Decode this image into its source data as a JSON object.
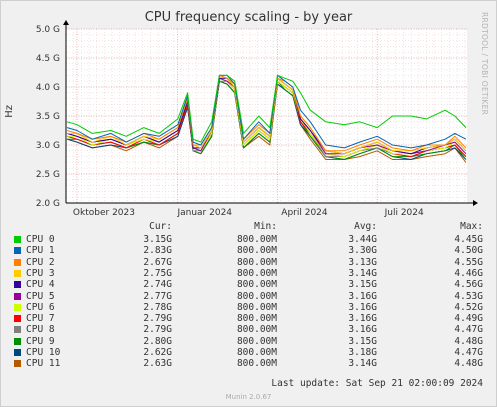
{
  "chart_data": {
    "type": "line",
    "title": "CPU frequency scaling - by year",
    "ylabel": "Hz",
    "ylim": [
      2.0,
      5.0
    ],
    "ytick_labels": [
      "2.0 G",
      "2.5 G",
      "3.0 G",
      "3.5 G",
      "4.0 G",
      "4.5 G",
      "5.0 G"
    ],
    "ytick_values": [
      2.0,
      2.5,
      3.0,
      3.5,
      4.0,
      4.5,
      5.0
    ],
    "x_range": [
      "2023-09-21",
      "2024-09-21"
    ],
    "xtick_labels": [
      "Oktober 2023",
      "Januar 2024",
      "April 2024",
      "Juli 2024"
    ],
    "xtick_dates": [
      "2023-10-01",
      "2024-01-01",
      "2024-04-01",
      "2024-07-01"
    ],
    "grid": true,
    "x_dates": [
      "2023-09-22",
      "2023-10-01",
      "2023-10-15",
      "2023-11-01",
      "2023-11-15",
      "2023-12-01",
      "2023-12-15",
      "2024-01-01",
      "2024-01-10",
      "2024-01-15",
      "2024-01-22",
      "2024-02-01",
      "2024-02-08",
      "2024-02-15",
      "2024-02-22",
      "2024-03-01",
      "2024-03-15",
      "2024-03-25",
      "2024-04-01",
      "2024-04-08",
      "2024-04-15",
      "2024-04-22",
      "2024-05-01",
      "2024-05-15",
      "2024-06-01",
      "2024-06-15",
      "2024-07-01",
      "2024-07-15",
      "2024-08-01",
      "2024-08-15",
      "2024-09-01",
      "2024-09-10",
      "2024-09-20"
    ],
    "series": [
      {
        "name": "CPU 0",
        "color": "#00cc00",
        "values": [
          3.4,
          3.35,
          3.2,
          3.25,
          3.15,
          3.3,
          3.2,
          3.45,
          3.9,
          3.1,
          3.05,
          3.4,
          4.2,
          4.2,
          4.1,
          3.2,
          3.5,
          3.3,
          4.2,
          4.15,
          4.1,
          3.9,
          3.6,
          3.4,
          3.35,
          3.4,
          3.3,
          3.5,
          3.5,
          3.45,
          3.6,
          3.5,
          3.3
        ]
      },
      {
        "name": "CPU 1",
        "color": "#0066b3",
        "values": [
          3.3,
          3.25,
          3.1,
          3.2,
          3.05,
          3.2,
          3.15,
          3.35,
          3.85,
          3.05,
          3.0,
          3.3,
          4.2,
          4.2,
          4.05,
          3.1,
          3.4,
          3.2,
          4.2,
          4.1,
          4.0,
          3.6,
          3.4,
          3.0,
          2.95,
          3.05,
          3.15,
          3.0,
          2.95,
          3.0,
          3.1,
          3.2,
          3.1
        ]
      },
      {
        "name": "CPU 2",
        "color": "#ff8000",
        "values": [
          3.25,
          3.2,
          3.1,
          3.15,
          3.05,
          3.2,
          3.1,
          3.3,
          3.8,
          3.0,
          3.0,
          3.3,
          4.2,
          4.15,
          4.05,
          3.1,
          3.35,
          3.2,
          4.15,
          4.1,
          4.0,
          3.5,
          3.3,
          2.9,
          2.9,
          3.0,
          3.1,
          2.95,
          2.9,
          3.0,
          3.0,
          3.15,
          2.95
        ]
      },
      {
        "name": "CPU 3",
        "color": "#ffcc00",
        "values": [
          3.2,
          3.2,
          3.05,
          3.15,
          3.0,
          3.15,
          3.1,
          3.3,
          3.8,
          3.0,
          2.95,
          3.25,
          4.2,
          4.15,
          4.0,
          3.05,
          3.3,
          3.15,
          4.15,
          4.05,
          3.95,
          3.5,
          3.3,
          2.9,
          2.85,
          2.95,
          3.05,
          2.9,
          2.9,
          2.95,
          3.0,
          3.1,
          2.9
        ]
      },
      {
        "name": "CPU 4",
        "color": "#330099",
        "values": [
          3.2,
          3.15,
          3.05,
          3.1,
          3.0,
          3.15,
          3.05,
          3.25,
          3.75,
          2.95,
          2.95,
          3.25,
          4.15,
          4.15,
          4.0,
          3.05,
          3.3,
          3.15,
          4.15,
          4.05,
          3.95,
          3.45,
          3.25,
          2.9,
          2.85,
          2.95,
          3.05,
          2.9,
          2.85,
          2.95,
          3.0,
          3.1,
          2.9
        ]
      },
      {
        "name": "CPU 5",
        "color": "#990099",
        "values": [
          3.2,
          3.15,
          3.05,
          3.1,
          3.0,
          3.15,
          3.05,
          3.25,
          3.75,
          2.95,
          2.9,
          3.25,
          4.15,
          4.1,
          4.0,
          3.05,
          3.3,
          3.15,
          4.15,
          4.05,
          3.95,
          3.45,
          3.25,
          2.85,
          2.85,
          2.95,
          3.0,
          2.9,
          2.85,
          2.9,
          3.0,
          3.05,
          2.85
        ]
      },
      {
        "name": "CPU 6",
        "color": "#ccff00",
        "values": [
          3.15,
          3.15,
          3.0,
          3.1,
          3.0,
          3.1,
          3.05,
          3.25,
          3.75,
          2.95,
          2.9,
          3.2,
          4.15,
          4.1,
          3.95,
          3.0,
          3.25,
          3.1,
          4.1,
          4.0,
          3.9,
          3.45,
          3.2,
          2.85,
          2.8,
          2.9,
          3.0,
          2.85,
          2.85,
          2.9,
          2.95,
          3.05,
          2.85
        ]
      },
      {
        "name": "CPU 7",
        "color": "#ff0000",
        "values": [
          3.15,
          3.1,
          3.0,
          3.05,
          2.95,
          3.1,
          3.0,
          3.2,
          3.7,
          2.95,
          2.9,
          3.2,
          4.15,
          4.1,
          3.95,
          3.0,
          3.25,
          3.1,
          4.1,
          4.0,
          3.9,
          3.4,
          3.2,
          2.85,
          2.8,
          2.9,
          3.0,
          2.85,
          2.8,
          2.9,
          2.95,
          3.0,
          2.8
        ]
      },
      {
        "name": "CPU 8",
        "color": "#808080",
        "values": [
          3.15,
          3.1,
          3.0,
          3.05,
          2.95,
          3.1,
          3.0,
          3.2,
          3.7,
          2.9,
          2.9,
          3.2,
          4.1,
          4.1,
          3.95,
          3.0,
          3.25,
          3.1,
          4.1,
          4.0,
          3.9,
          3.4,
          3.2,
          2.8,
          2.8,
          2.9,
          2.95,
          2.85,
          2.8,
          2.9,
          2.95,
          3.0,
          2.8
        ]
      },
      {
        "name": "CPU 9",
        "color": "#008f00",
        "values": [
          3.1,
          3.1,
          3.0,
          3.05,
          2.95,
          3.05,
          3.0,
          3.2,
          3.7,
          2.9,
          2.85,
          3.15,
          4.1,
          4.05,
          3.9,
          2.95,
          3.2,
          3.05,
          4.1,
          3.95,
          3.85,
          3.4,
          3.15,
          2.8,
          2.75,
          2.85,
          2.95,
          2.8,
          2.8,
          2.85,
          2.9,
          3.0,
          2.75
        ]
      },
      {
        "name": "CPU 10",
        "color": "#00487d",
        "values": [
          3.1,
          3.05,
          2.95,
          3.0,
          2.95,
          3.05,
          3.0,
          3.15,
          3.65,
          2.9,
          2.85,
          3.15,
          4.1,
          4.05,
          3.9,
          2.95,
          3.2,
          3.05,
          4.05,
          3.95,
          3.85,
          3.35,
          3.15,
          2.8,
          2.75,
          2.85,
          2.95,
          2.8,
          2.75,
          2.85,
          2.9,
          2.95,
          2.75
        ]
      },
      {
        "name": "CPU 11",
        "color": "#b35a00",
        "values": [
          3.1,
          3.05,
          2.95,
          3.0,
          2.9,
          3.05,
          2.95,
          3.15,
          3.65,
          2.9,
          2.85,
          3.15,
          4.1,
          4.05,
          3.9,
          2.95,
          3.15,
          3.0,
          4.05,
          3.95,
          3.85,
          3.35,
          3.1,
          2.75,
          2.75,
          2.8,
          2.9,
          2.75,
          2.75,
          2.8,
          2.85,
          2.95,
          2.7
        ]
      }
    ]
  },
  "legend": {
    "headers": {
      "cur": "Cur:",
      "min": "Min:",
      "avg": "Avg:",
      "max": "Max:"
    },
    "rows": [
      {
        "name": "CPU 0",
        "color": "#00cc00",
        "cur": "3.15G",
        "min": "800.00M",
        "avg": "3.44G",
        "max": "4.45G"
      },
      {
        "name": "CPU 1",
        "color": "#0066b3",
        "cur": "2.83G",
        "min": "800.00M",
        "avg": "3.30G",
        "max": "4.50G"
      },
      {
        "name": "CPU 2",
        "color": "#ff8000",
        "cur": "2.67G",
        "min": "800.00M",
        "avg": "3.13G",
        "max": "4.55G"
      },
      {
        "name": "CPU 3",
        "color": "#ffcc00",
        "cur": "2.75G",
        "min": "800.00M",
        "avg": "3.14G",
        "max": "4.46G"
      },
      {
        "name": "CPU 4",
        "color": "#330099",
        "cur": "2.74G",
        "min": "800.00M",
        "avg": "3.15G",
        "max": "4.56G"
      },
      {
        "name": "CPU 5",
        "color": "#990099",
        "cur": "2.77G",
        "min": "800.00M",
        "avg": "3.16G",
        "max": "4.53G"
      },
      {
        "name": "CPU 6",
        "color": "#ccff00",
        "cur": "2.78G",
        "min": "800.00M",
        "avg": "3.16G",
        "max": "4.52G"
      },
      {
        "name": "CPU 7",
        "color": "#ff0000",
        "cur": "2.79G",
        "min": "800.00M",
        "avg": "3.16G",
        "max": "4.49G"
      },
      {
        "name": "CPU 8",
        "color": "#808080",
        "cur": "2.79G",
        "min": "800.00M",
        "avg": "3.16G",
        "max": "4.47G"
      },
      {
        "name": "CPU 9",
        "color": "#008f00",
        "cur": "2.80G",
        "min": "800.00M",
        "avg": "3.15G",
        "max": "4.48G"
      },
      {
        "name": "CPU 10",
        "color": "#00487d",
        "cur": "2.62G",
        "min": "800.00M",
        "avg": "3.18G",
        "max": "4.47G"
      },
      {
        "name": "CPU 11",
        "color": "#b35a00",
        "cur": "2.63G",
        "min": "800.00M",
        "avg": "3.14G",
        "max": "4.48G"
      }
    ]
  },
  "footer": {
    "last_update": "Last update: Sat Sep 21 02:00:09 2024",
    "generator": "Munin 2.0.67"
  },
  "side_credit": "RRDTOOL / TOBI OETIKER"
}
